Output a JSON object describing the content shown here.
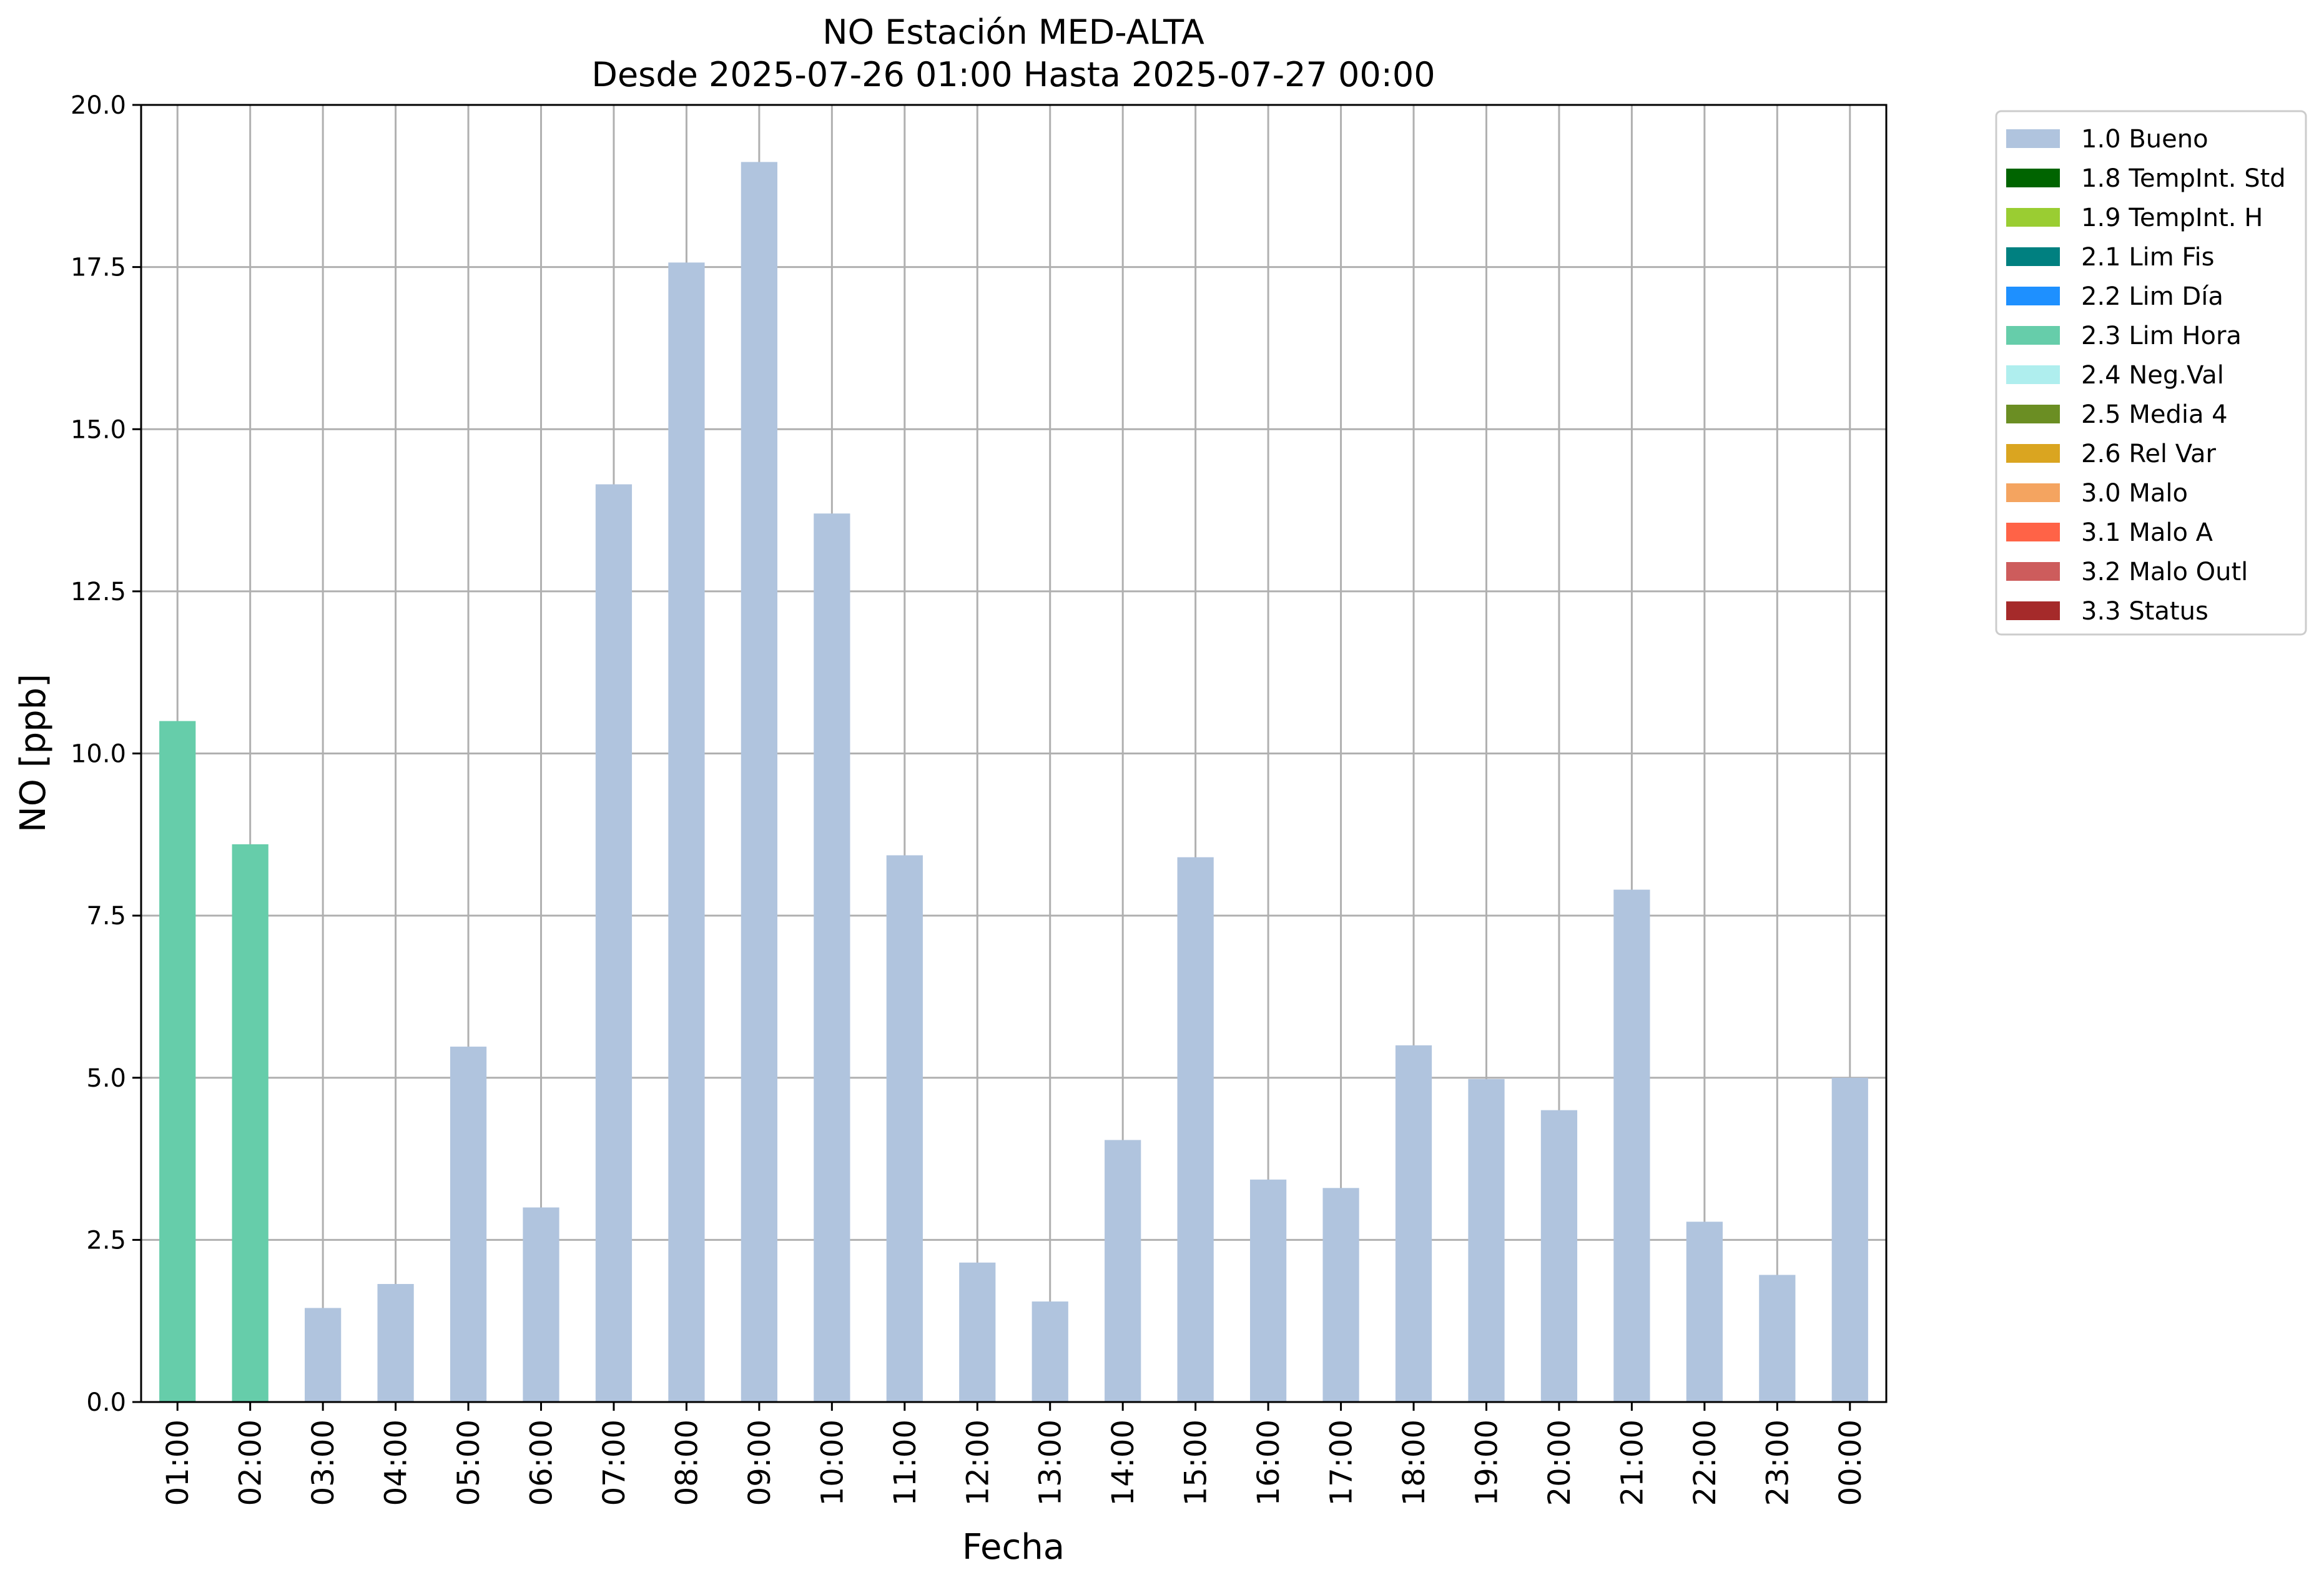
{
  "chart_data": {
    "type": "bar",
    "title_line1": "NO Estación MED-ALTA",
    "title_line2": "Desde 2025-07-26 01:00 Hasta 2025-07-27 00:00",
    "xlabel": "Fecha",
    "ylabel": "NO [ppb]",
    "ylim": [
      0,
      20
    ],
    "yticks": [
      "0.0",
      "2.5",
      "5.0",
      "7.5",
      "10.0",
      "12.5",
      "15.0",
      "17.5",
      "20.0"
    ],
    "grid": true,
    "legend_position": "outside-top-right",
    "categories": [
      "01:00",
      "02:00",
      "03:00",
      "04:00",
      "05:00",
      "06:00",
      "07:00",
      "08:00",
      "09:00",
      "10:00",
      "11:00",
      "12:00",
      "13:00",
      "14:00",
      "15:00",
      "16:00",
      "17:00",
      "18:00",
      "19:00",
      "20:00",
      "21:00",
      "22:00",
      "23:00",
      "00:00"
    ],
    "values": [
      10.5,
      8.6,
      1.45,
      1.82,
      5.48,
      3.0,
      14.15,
      17.57,
      19.12,
      13.7,
      8.43,
      2.15,
      1.55,
      4.04,
      8.4,
      3.43,
      3.3,
      5.5,
      4.98,
      4.5,
      7.9,
      2.78,
      1.96,
      5.0
    ],
    "flags": [
      "2.3 Lim Hora",
      "2.3 Lim Hora",
      "1.0 Bueno",
      "1.0 Bueno",
      "1.0 Bueno",
      "1.0 Bueno",
      "1.0 Bueno",
      "1.0 Bueno",
      "1.0 Bueno",
      "1.0 Bueno",
      "1.0 Bueno",
      "1.0 Bueno",
      "1.0 Bueno",
      "1.0 Bueno",
      "1.0 Bueno",
      "1.0 Bueno",
      "1.0 Bueno",
      "1.0 Bueno",
      "1.0 Bueno",
      "1.0 Bueno",
      "1.0 Bueno",
      "1.0 Bueno",
      "1.0 Bueno",
      "1.0 Bueno"
    ],
    "legend": [
      {
        "name": "1.0 Bueno",
        "color": "#b0c4de"
      },
      {
        "name": "1.8 TempInt. Std",
        "color": "#006400"
      },
      {
        "name": "1.9 TempInt. H",
        "color": "#9acd32"
      },
      {
        "name": "2.1 Lim Fis",
        "color": "#008080"
      },
      {
        "name": "2.2 Lim Día",
        "color": "#1e90ff"
      },
      {
        "name": "2.3 Lim Hora",
        "color": "#66cdaa"
      },
      {
        "name": "2.4 Neg.Val",
        "color": "#afeeee"
      },
      {
        "name": "2.5 Media 4",
        "color": "#6b8e23"
      },
      {
        "name": "2.6 Rel Var",
        "color": "#daa520"
      },
      {
        "name": "3.0 Malo",
        "color": "#f4a460"
      },
      {
        "name": "3.1 Malo A",
        "color": "#ff6347"
      },
      {
        "name": "3.2 Malo Outl",
        "color": "#cd5c5c"
      },
      {
        "name": "3.3 Status",
        "color": "#a52a2a"
      }
    ]
  }
}
